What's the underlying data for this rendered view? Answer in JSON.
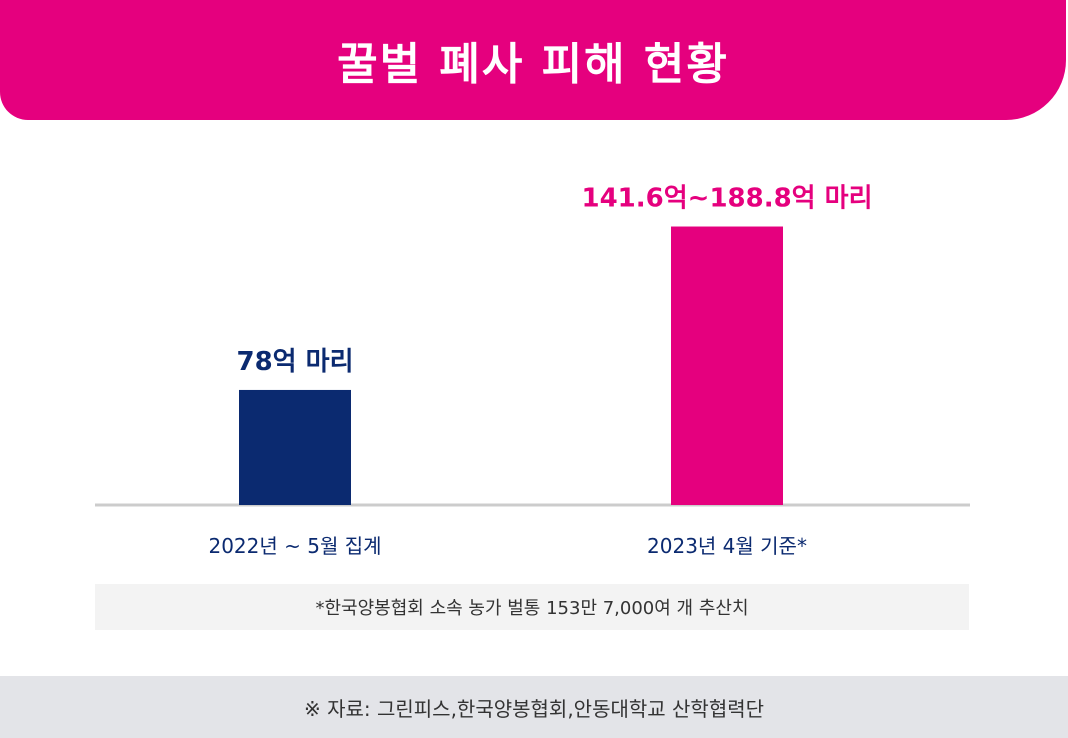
{
  "title": "꿀벌 폐사 피해 현황",
  "colors": {
    "accent": "#e5007e",
    "navy": "#0b2a70",
    "axis": "#cccccc"
  },
  "chart_data": {
    "type": "bar",
    "categories": [
      "2022년 ~ 5월 집계",
      "2023년 4월 기준*"
    ],
    "values": [
      78,
      188.8
    ],
    "value_labels": [
      "78억 마리",
      "141.6억~188.8억 마리"
    ],
    "bar_colors": [
      "#0b2a70",
      "#e5007e"
    ],
    "ylim": [
      0,
      200
    ],
    "grid": false,
    "unit": "억 마리"
  },
  "footnote": "*한국양봉협회 소속 농가 벌통 153만 7,000여 개 추산치",
  "source": "※ 자료: 그린피스,한국양봉협회,안동대학교 산학협력단"
}
